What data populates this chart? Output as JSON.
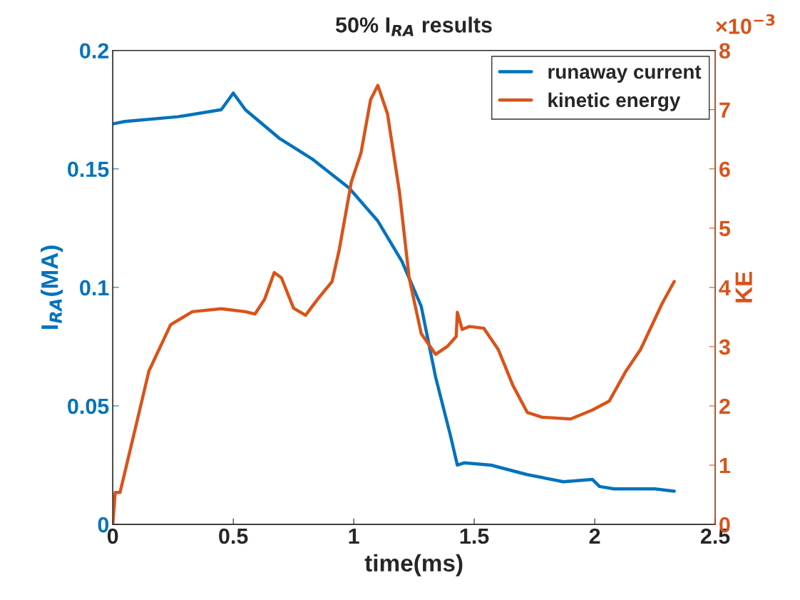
{
  "chart_data": {
    "type": "line",
    "title": "50% I$_{RA}$ results",
    "xlabel": "time(ms)",
    "ylabel": "I$_{RA}$(MA)",
    "y2label": "KE",
    "annotations": [
      "×10$^{−3}$"
    ],
    "xlim": [
      0,
      2.5
    ],
    "xticks": [
      0,
      0.5,
      1,
      1.5,
      2,
      2.5
    ],
    "ylim": [
      0,
      0.2
    ],
    "yticks": [
      0,
      0.05,
      0.1,
      0.15,
      0.2
    ],
    "y2lim": [
      0,
      8
    ],
    "y2ticks": [
      0,
      1,
      2,
      3,
      4,
      5,
      6,
      7,
      8
    ],
    "legend": "top right",
    "grid": false,
    "line_style": "solid",
    "marker": "none",
    "series": [
      {
        "name": "runaway current",
        "color": "#0072bd",
        "x": [
          0,
          0.05,
          0.27,
          0.45,
          0.5,
          0.55,
          0.69,
          0.83,
          0.98,
          1.1,
          1.2,
          1.28,
          1.34,
          1.4,
          1.43,
          1.46,
          1.57,
          1.72,
          1.87,
          1.99,
          2.02,
          2.08,
          2.25,
          2.33
        ],
        "values": [
          0.169,
          0.17,
          0.172,
          0.175,
          0.182,
          0.175,
          0.163,
          0.154,
          0.142,
          0.128,
          0.111,
          0.092,
          0.062,
          0.038,
          0.025,
          0.026,
          0.025,
          0.021,
          0.018,
          0.019,
          0.016,
          0.015,
          0.015,
          0.014
        ]
      },
      {
        "name": "kinetic energy",
        "color": "#d95319",
        "axis": "y2",
        "x": [
          0,
          0.01,
          0.03,
          0.08,
          0.15,
          0.24,
          0.33,
          0.45,
          0.55,
          0.59,
          0.63,
          0.67,
          0.7,
          0.75,
          0.8,
          0.85,
          0.91,
          0.94,
          0.99,
          1.03,
          1.07,
          1.1,
          1.14,
          1.19,
          1.23,
          1.28,
          1.34,
          1.39,
          1.425,
          1.43,
          1.45,
          1.48,
          1.54,
          1.6,
          1.66,
          1.72,
          1.78,
          1.9,
          1.99,
          2.06,
          2.13,
          2.19,
          2.28,
          2.33
        ],
        "values": [
          0,
          0.54,
          0.54,
          1.39,
          2.59,
          3.37,
          3.59,
          3.64,
          3.59,
          3.55,
          3.8,
          4.25,
          4.16,
          3.65,
          3.53,
          3.8,
          4.1,
          4.64,
          5.78,
          6.27,
          7.17,
          7.41,
          6.93,
          5.6,
          4.16,
          3.22,
          2.87,
          3.01,
          3.17,
          3.58,
          3.29,
          3.34,
          3.31,
          2.95,
          2.35,
          1.89,
          1.81,
          1.78,
          1.93,
          2.08,
          2.59,
          2.95,
          3.73,
          4.1
        ]
      }
    ]
  }
}
